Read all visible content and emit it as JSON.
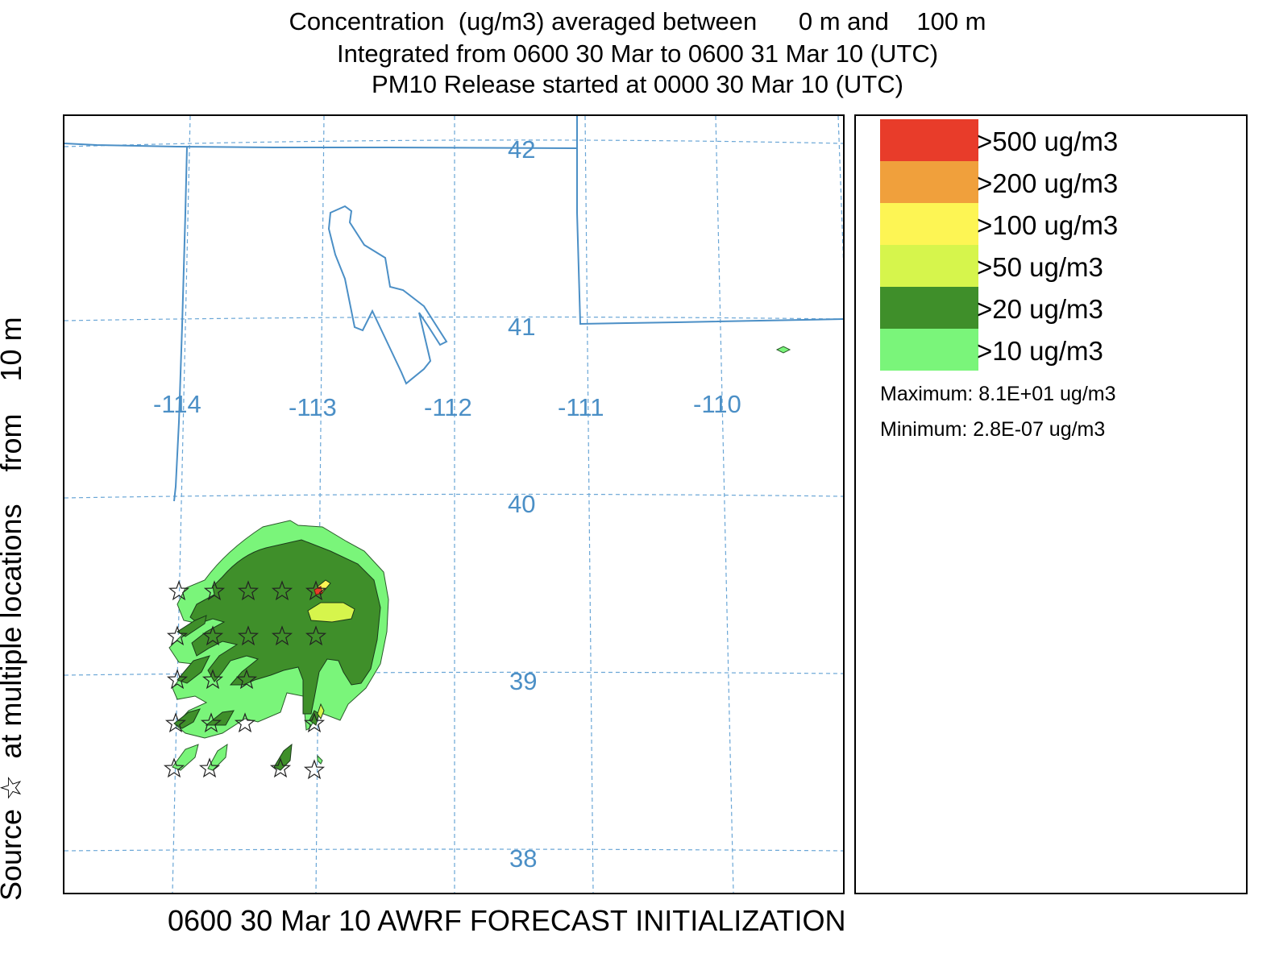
{
  "header": {
    "line1": "Concentration  (ug/m3) averaged between      0 m and    100 m",
    "line2": "Integrated from 0600 30 Mar to 0600 31 Mar 10 (UTC)",
    "line3": "PM10 Release started at 0000 30 Mar 10 (UTC)"
  },
  "side_label": "Source ☆  at multiple locations    from    10 m",
  "footer": "0600 30 Mar 10 AWRF FORECAST INITIALIZATION",
  "map": {
    "latitude_labels": [
      "42",
      "41",
      "40",
      "39",
      "38"
    ],
    "longitude_labels": [
      "-114",
      "-113",
      "-112",
      "-111",
      "-110"
    ],
    "colors": {
      "gridline": "#6aa6d6",
      "boundary": "#4b8fc6",
      "contour_10": "#7af57a",
      "contour_20": "#3f8f2a",
      "contour_50": "#d6f54c",
      "contour_100": "#fdf554",
      "contour_200": "#f0a03c",
      "contour_500": "#e83c2a"
    },
    "source_marker": "star-icon"
  },
  "legend": {
    "entries": [
      {
        "label": ">500 ug/m3",
        "color": "#e83c2a"
      },
      {
        "label": ">200 ug/m3",
        "color": "#f0a03c"
      },
      {
        "label": ">100 ug/m3",
        "color": "#fdf554"
      },
      {
        "label": ">50 ug/m3",
        "color": "#d6f54c"
      },
      {
        "label": ">20 ug/m3",
        "color": "#3f8f2a"
      },
      {
        "label": ">10 ug/m3",
        "color": "#7af57a"
      }
    ],
    "maximum": "Maximum: 8.1E+01 ug/m3",
    "minimum": "Minimum: 2.8E-07 ug/m3"
  }
}
